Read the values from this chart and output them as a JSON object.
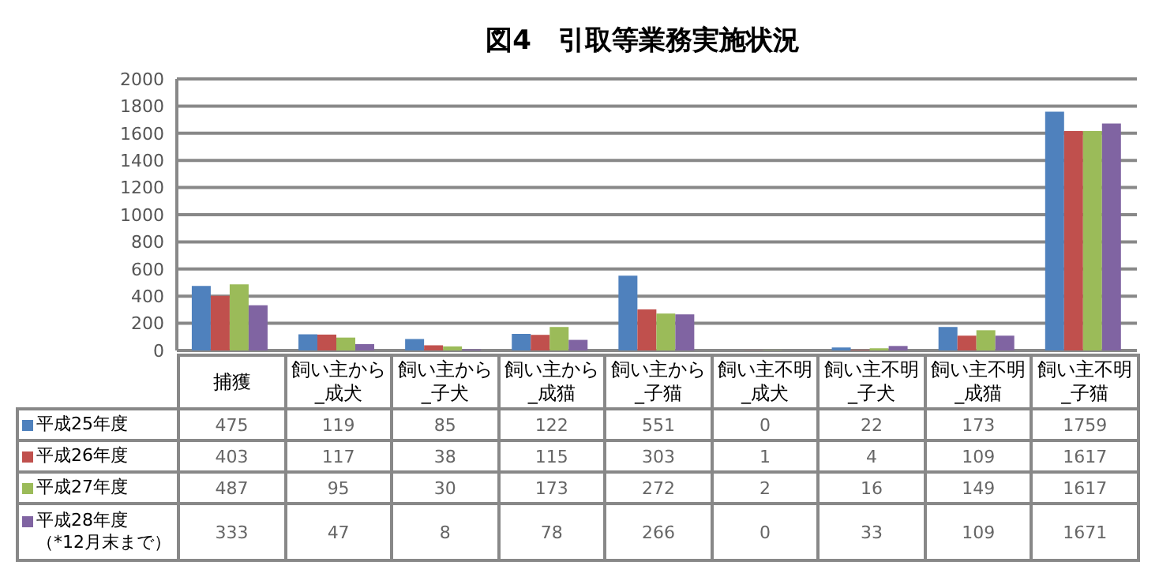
{
  "chart_data": {
    "type": "bar",
    "title": "図4　引取等業務実施状況",
    "categories": [
      "捕獲",
      "飼い主から_成犬",
      "飼い主から_子犬",
      "飼い主から_成猫",
      "飼い主から_子猫",
      "飼い主不明_成犬",
      "飼い主不明_子犬",
      "飼い主不明_成猫",
      "飼い主不明_子猫"
    ],
    "series": [
      {
        "name": "平成25年度",
        "color": "#4f81bd",
        "values": [
          475,
          119,
          85,
          122,
          551,
          0,
          22,
          173,
          1759
        ]
      },
      {
        "name": "平成26年度",
        "color": "#c0504d",
        "values": [
          403,
          117,
          38,
          115,
          303,
          1,
          4,
          109,
          1617
        ]
      },
      {
        "name": "平成27年度",
        "color": "#9bbb59",
        "values": [
          487,
          95,
          30,
          173,
          272,
          2,
          16,
          149,
          1617
        ]
      },
      {
        "name": "平成28年度（*12月末まで）",
        "color": "#8064a2",
        "values": [
          333,
          47,
          8,
          78,
          266,
          0,
          33,
          109,
          1671
        ]
      }
    ],
    "ylim": [
      0,
      2000
    ],
    "yticks": [
      0,
      200,
      400,
      600,
      800,
      1000,
      1200,
      1400,
      1600,
      1800,
      2000
    ],
    "grid": "y",
    "legend": "bottom",
    "data_labels": true
  }
}
